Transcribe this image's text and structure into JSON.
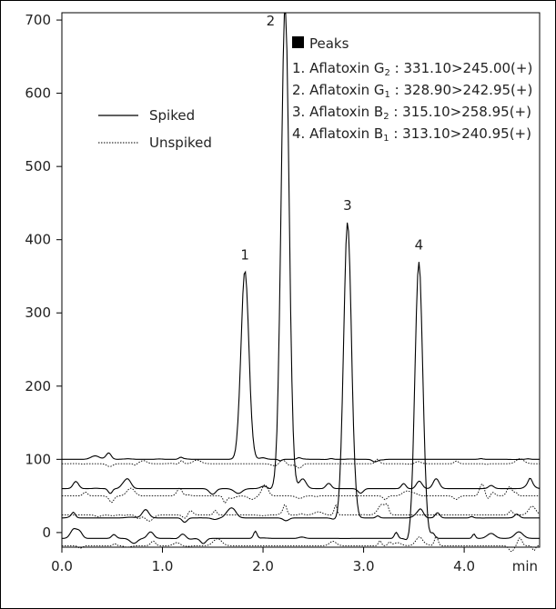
{
  "chart_data": {
    "type": "line",
    "xunit": "min",
    "xlim": [
      0.0,
      4.75
    ],
    "ylim": [
      -20,
      710
    ],
    "x_ticks": [
      "0.0",
      "1.0",
      "2.0",
      "3.0",
      "4.0"
    ],
    "y_ticks": [
      "0",
      "100",
      "200",
      "300",
      "400",
      "500",
      "600",
      "700"
    ],
    "x_tick_values": [
      0.0,
      1.0,
      2.0,
      3.0,
      4.0
    ],
    "y_tick_values": [
      0,
      100,
      200,
      300,
      400,
      500,
      600,
      700
    ],
    "legend": [
      {
        "label": "Spiked",
        "style": "solid"
      },
      {
        "label": "Unspiked",
        "style": "dotted"
      }
    ],
    "peaks_title": "Peaks",
    "peaks_list": [
      {
        "prefix": "1. Aflatoxin G",
        "sub": "2",
        "rest": " : 331.10>245.00(+)"
      },
      {
        "prefix": "2. Aflatoxin G",
        "sub": "1",
        "rest": " : 328.90>242.95(+)"
      },
      {
        "prefix": "3. Aflatoxin B",
        "sub": "2",
        "rest": " : 315.10>258.95(+)"
      },
      {
        "prefix": "4. Aflatoxin B",
        "sub": "1",
        "rest": " : 313.10>240.95(+)"
      }
    ],
    "peaks": [
      {
        "label": "1",
        "x": 1.82,
        "y": 358
      },
      {
        "label": "2",
        "x": 2.22,
        "y": 710
      },
      {
        "label": "3",
        "x": 2.84,
        "y": 426
      },
      {
        "label": "4",
        "x": 3.55,
        "y": 372
      }
    ],
    "baselines": [
      {
        "style": "solid",
        "y": 100,
        "noise": 4,
        "peak": 1
      },
      {
        "style": "dotted",
        "y": 94,
        "noise": 6,
        "peak": null
      },
      {
        "style": "solid",
        "y": 60,
        "noise": 12,
        "peak": 2
      },
      {
        "style": "dotted",
        "y": 50,
        "noise": 14,
        "peak": null
      },
      {
        "style": "solid",
        "y": 20,
        "noise": 10,
        "peak": 3
      },
      {
        "style": "dotted",
        "y": 24,
        "noise": 12,
        "peak": null
      },
      {
        "style": "solid",
        "y": -8,
        "noise": 10,
        "peak": 4
      },
      {
        "style": "dotted",
        "y": -18,
        "noise": 10,
        "peak": null
      }
    ],
    "colors": {
      "line": "#000000",
      "axis": "#000000"
    }
  }
}
